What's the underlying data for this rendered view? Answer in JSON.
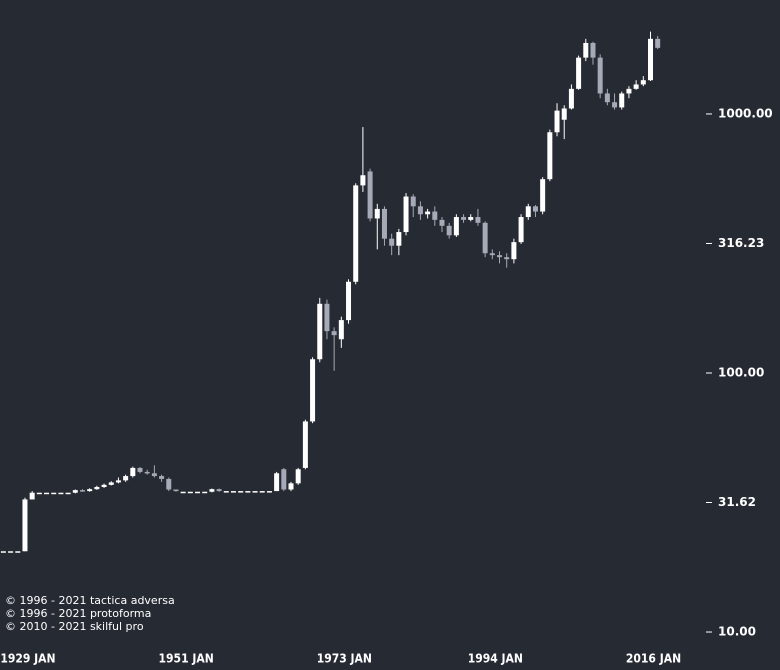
{
  "chart_data": {
    "type": "candlestick",
    "log_scale": true,
    "up_color": "#ffffff",
    "down_color": "#a6a9b6",
    "ylim": [
      8.91,
      2754
    ],
    "yticks": [
      {
        "value": 10,
        "label": "10.00"
      },
      {
        "value": 31.62,
        "label": "31.62"
      },
      {
        "value": 100,
        "label": "100.00"
      },
      {
        "value": 316.23,
        "label": "316.23"
      },
      {
        "value": 1000,
        "label": "1000.00"
      }
    ],
    "categories": [
      null,
      null,
      null,
      "1929 JAN",
      null,
      null,
      null,
      null,
      null,
      null,
      null,
      null,
      null,
      null,
      null,
      null,
      null,
      null,
      null,
      null,
      null,
      null,
      null,
      null,
      null,
      "1951 JAN",
      null,
      null,
      null,
      null,
      null,
      null,
      null,
      null,
      null,
      null,
      null,
      null,
      null,
      null,
      null,
      null,
      null,
      null,
      null,
      null,
      null,
      "1973 JAN",
      null,
      null,
      null,
      null,
      null,
      null,
      null,
      null,
      null,
      null,
      null,
      null,
      null,
      null,
      null,
      null,
      null,
      null,
      null,
      null,
      "1994 JAN",
      null,
      null,
      null,
      null,
      null,
      null,
      null,
      null,
      null,
      null,
      null,
      null,
      null,
      null,
      null,
      null,
      null,
      null,
      null,
      null,
      null,
      "2016 JAN",
      null
    ],
    "open": [
      20.5,
      20.5,
      20.5,
      20.5,
      32.5,
      34.5,
      34.5,
      34.5,
      34.5,
      34.5,
      34.5,
      35.3,
      35,
      35.6,
      36.3,
      37,
      37.8,
      38.5,
      40,
      43,
      41.5,
      41,
      40,
      39,
      35.5,
      34.8,
      34.8,
      34.8,
      34.8,
      34.8,
      35.6,
      35,
      35,
      35,
      35,
      35,
      35,
      35,
      35,
      42.5,
      35.5,
      37.5,
      43,
      65,
      113,
      185,
      145,
      135,
      160,
      225,
      530,
      600,
      395,
      430,
      330,
      310,
      350,
      480,
      440,
      410,
      420,
      390,
      370,
      340,
      400,
      390,
      400,
      380,
      290,
      285,
      280,
      275,
      320,
      400,
      440,
      420,
      560,
      850,
      950,
      1050,
      1250,
      1650,
      1880,
      1650,
      1200,
      1110,
      1060,
      1200,
      1250,
      1300,
      1350,
      1950
    ],
    "high": [
      20.5,
      20.5,
      20.5,
      33,
      35,
      34.5,
      34.5,
      34.5,
      34.5,
      34.5,
      35.5,
      35.6,
      35.9,
      36.7,
      37.4,
      38.2,
      39.5,
      40.5,
      43.5,
      43.3,
      42.3,
      44,
      40.5,
      39.5,
      35.5,
      34.8,
      34.8,
      34.8,
      34.8,
      35.8,
      35.8,
      35,
      35,
      35,
      35,
      35,
      35,
      35,
      41.5,
      43,
      38,
      43,
      66,
      115,
      195,
      192,
      150,
      165,
      230,
      540,
      890,
      615,
      450,
      440,
      345,
      360,
      495,
      490,
      460,
      430,
      440,
      400,
      380,
      410,
      410,
      410,
      430,
      385,
      300,
      295,
      290,
      330,
      410,
      450,
      445,
      570,
      870,
      1100,
      1080,
      1300,
      1680,
      1950,
      1900,
      1700,
      1250,
      1200,
      1220,
      1280,
      1350,
      1400,
      2080,
      2000
    ],
    "low": [
      20.5,
      20.5,
      20.5,
      20.5,
      32.5,
      34.5,
      34.5,
      34.5,
      34.5,
      34.5,
      34.3,
      34.8,
      34.8,
      35.4,
      36,
      36.8,
      37.5,
      38,
      39.5,
      41,
      40.5,
      39.5,
      38,
      35,
      34.8,
      34.8,
      34.8,
      34.8,
      34.8,
      34.6,
      34.8,
      35,
      35,
      35,
      35,
      35,
      35,
      35,
      35,
      35,
      35,
      37,
      42.5,
      64,
      110,
      135,
      102,
      125,
      155,
      220,
      500,
      385,
      300,
      310,
      285,
      285,
      340,
      400,
      390,
      395,
      370,
      350,
      330,
      335,
      380,
      385,
      370,
      280,
      275,
      265,
      255,
      265,
      315,
      390,
      400,
      410,
      550,
      820,
      800,
      1040,
      1240,
      1600,
      1550,
      1150,
      1080,
      1040,
      1040,
      1150,
      1240,
      1280,
      1340,
      1780
    ],
    "close": [
      20.5,
      20.5,
      20.5,
      32.5,
      34.5,
      34.5,
      34.5,
      34.5,
      34.5,
      34.5,
      35.3,
      35,
      35.6,
      36.3,
      37,
      37.8,
      38.5,
      40,
      43,
      41.5,
      41,
      40,
      39,
      35.5,
      35,
      34.8,
      34.8,
      34.8,
      34.8,
      35.6,
      35,
      35,
      35,
      35,
      35,
      35,
      35,
      35,
      41,
      35.5,
      37.5,
      42.5,
      65,
      113,
      185,
      145,
      140,
      160,
      225,
      530,
      580,
      395,
      430,
      330,
      310,
      350,
      480,
      440,
      410,
      420,
      390,
      370,
      340,
      400,
      390,
      400,
      380,
      290,
      285,
      280,
      275,
      320,
      400,
      440,
      420,
      560,
      850,
      1030,
      1050,
      1250,
      1650,
      1880,
      1650,
      1200,
      1110,
      1060,
      1200,
      1250,
      1300,
      1350,
      1950,
      1800
    ],
    "credits": [
      "© 1996 - 2021 tactica adversa",
      "© 1996 - 2021 protoforma",
      "© 2010 - 2021 skilful pro"
    ]
  }
}
